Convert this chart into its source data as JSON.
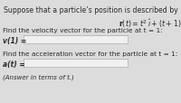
{
  "bg_color": "#dcdcdc",
  "text_color": "#2a2a2a",
  "title_line1": "Suppose that a particle’s position is described by",
  "velocity_label": "Find the velocity vector for the particle at t = 1:",
  "velocity_var": "v(1) =",
  "accel_label": "Find the acceleration vector for the particle at t = 1:",
  "accel_var": "a(t) =",
  "note": "(Answer in terms of t.)",
  "box_color": "#f0f0f0",
  "box_edge": "#aaaaaa",
  "title_fontsize": 5.6,
  "label_fontsize": 5.3,
  "var_fontsize": 5.5,
  "note_fontsize": 5.0,
  "eq_fontsize": 5.8
}
